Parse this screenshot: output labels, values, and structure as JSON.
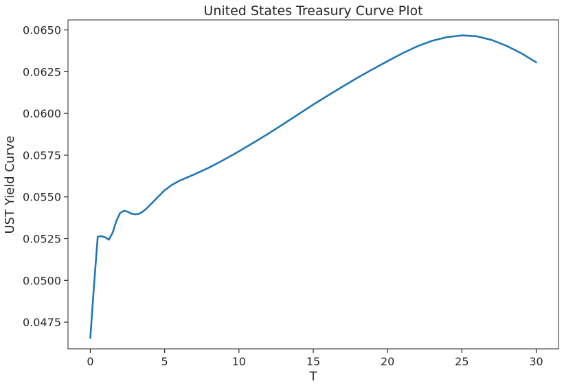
{
  "chart_data": {
    "type": "line",
    "title": "United States Treasury Curve Plot",
    "xlabel": "T",
    "ylabel": "UST Yield Curve",
    "xlim": [
      -1.5,
      31.5
    ],
    "ylim": [
      0.0459,
      0.0656
    ],
    "xticks": [
      0,
      5,
      10,
      15,
      20,
      25,
      30
    ],
    "xtick_labels": [
      "0",
      "5",
      "10",
      "15",
      "20",
      "25",
      "30"
    ],
    "yticks": [
      0.0475,
      0.05,
      0.0525,
      0.055,
      0.0575,
      0.06,
      0.0625,
      0.065
    ],
    "ytick_labels": [
      "0.0475",
      "0.0500",
      "0.0525",
      "0.0550",
      "0.0575",
      "0.0600",
      "0.0625",
      "0.0650"
    ],
    "grid": false,
    "legend": "none",
    "colors": {
      "line": "#1f77b4",
      "axis": "#262626",
      "background": "#ffffff"
    },
    "series": [
      {
        "x": [
          0,
          0.25,
          0.5,
          0.75,
          1.0,
          1.25,
          1.5,
          1.75,
          2.0,
          2.25,
          2.5,
          2.75,
          3.0,
          3.25,
          3.5,
          3.75,
          4.0,
          4.5,
          5.0,
          5.5,
          6.0,
          7.0,
          8.0,
          9.0,
          10.0,
          11.0,
          12.0,
          13.0,
          14.0,
          15.0,
          16.0,
          17.0,
          18.0,
          19.0,
          20.0,
          21.0,
          22.0,
          23.0,
          24.0,
          25.0,
          26.0,
          27.0,
          28.0,
          29.0,
          30.0
        ],
        "y": [
          0.04655,
          0.0497,
          0.05262,
          0.05265,
          0.05258,
          0.05244,
          0.05285,
          0.05355,
          0.05403,
          0.05417,
          0.05412,
          0.054,
          0.05396,
          0.05398,
          0.0541,
          0.05428,
          0.0545,
          0.05495,
          0.0554,
          0.05572,
          0.05597,
          0.05635,
          0.05676,
          0.05723,
          0.05773,
          0.05826,
          0.0588,
          0.05937,
          0.05995,
          0.06053,
          0.06108,
          0.06162,
          0.06215,
          0.06265,
          0.06313,
          0.0636,
          0.06402,
          0.06435,
          0.06457,
          0.06467,
          0.06462,
          0.0644,
          0.06405,
          0.0636,
          0.06306
        ]
      }
    ]
  }
}
